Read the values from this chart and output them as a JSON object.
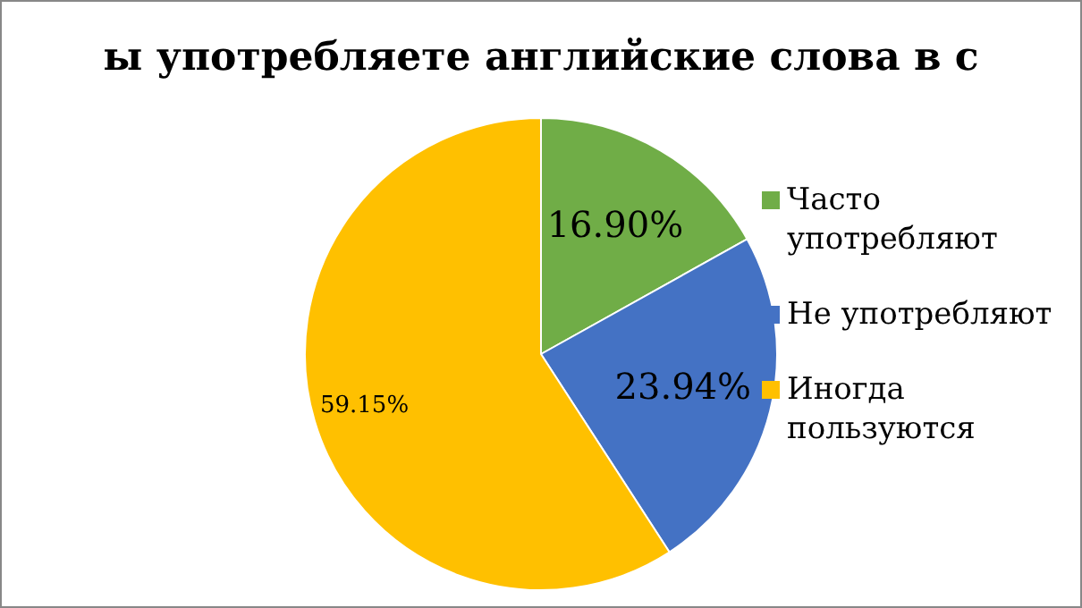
{
  "chart_data": {
    "type": "pie",
    "title": "ы употребляете английские слова в с",
    "categories": [
      "Часто употребляют",
      "Не употребляют",
      "Иногда пользуются"
    ],
    "values": [
      16.9,
      23.94,
      59.15
    ],
    "colors": [
      "#70ad47",
      "#4472c4",
      "#ffc000"
    ],
    "value_labels": [
      "16.90%",
      "23.94%",
      "59.15%"
    ],
    "legend": "right"
  }
}
